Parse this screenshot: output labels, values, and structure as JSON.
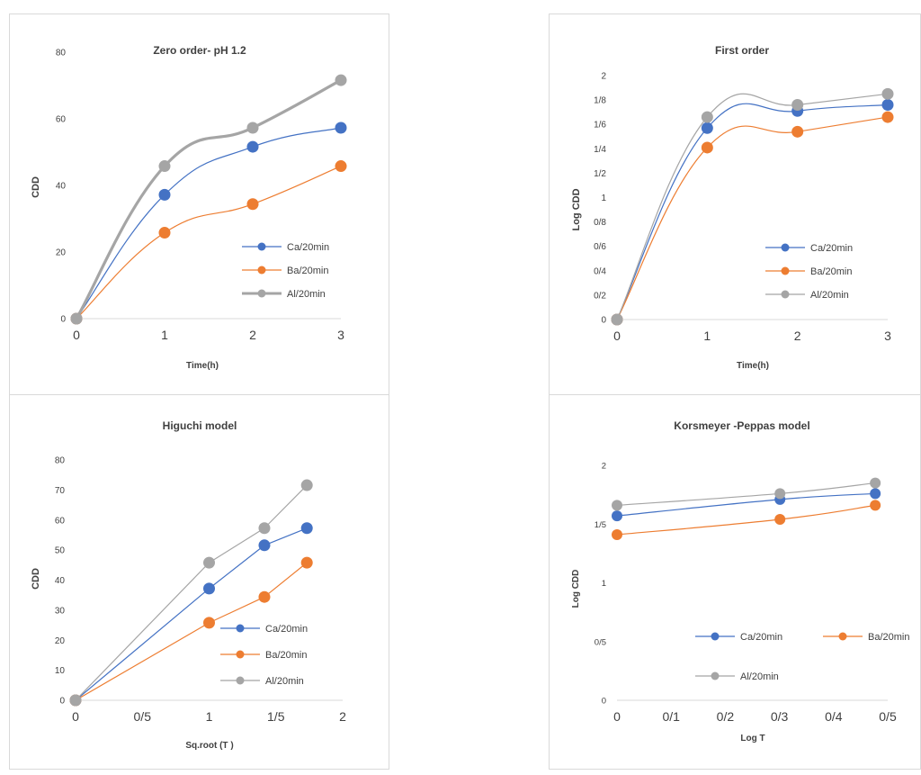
{
  "colors": {
    "ca": "#4472c4",
    "ba": "#ed7d31",
    "al": "#a5a5a5",
    "axis": "#d9d9d9",
    "text": "#404040"
  },
  "chart_data": [
    {
      "type": "line",
      "title": "Zero order- pH 1.2",
      "xlabel": "Time(h)",
      "ylabel": "CDD",
      "xlim": [
        0,
        3
      ],
      "ylim": [
        0,
        80
      ],
      "x_ticks": [
        "0",
        "1",
        "2",
        "3"
      ],
      "y_ticks": [
        "0",
        "20",
        "40",
        "60",
        "80"
      ],
      "grid": false,
      "legend": "right",
      "x": [
        0,
        1,
        2,
        3
      ],
      "series": [
        {
          "name": "Ca/20min",
          "values": [
            0,
            37.2,
            51.6,
            57.3
          ]
        },
        {
          "name": "Ba/20min",
          "values": [
            0,
            25.8,
            34.4,
            45.8
          ]
        },
        {
          "name": "Al/20min",
          "values": [
            0,
            45.8,
            57.3,
            71.6
          ]
        }
      ]
    },
    {
      "type": "line",
      "title": "First order",
      "xlabel": "Time(h)",
      "ylabel": "Log CDD",
      "xlim": [
        0,
        3
      ],
      "ylim": [
        0,
        2
      ],
      "x_ticks": [
        "0",
        "1",
        "2",
        "3"
      ],
      "y_ticks": [
        "0",
        "0/2",
        "0/4",
        "0/6",
        "0/8",
        "1",
        "1/2",
        "1/4",
        "1/6",
        "1/8",
        "2"
      ],
      "grid": false,
      "legend": "right",
      "x": [
        0,
        1,
        2,
        3
      ],
      "series": [
        {
          "name": "Ca/20min",
          "values": [
            0,
            1.57,
            1.71,
            1.76
          ]
        },
        {
          "name": "Ba/20min",
          "values": [
            0,
            1.41,
            1.54,
            1.66
          ]
        },
        {
          "name": "Al/20min",
          "values": [
            0,
            1.66,
            1.76,
            1.85
          ]
        }
      ]
    },
    {
      "type": "line",
      "title": "Higuchi model",
      "xlabel": "Sq.root (T )",
      "ylabel": "CDD",
      "xlim": [
        0,
        2
      ],
      "ylim": [
        0,
        80
      ],
      "x_ticks": [
        "0",
        "0/5",
        "1",
        "1/5",
        "2"
      ],
      "y_ticks": [
        "0",
        "10",
        "20",
        "30",
        "40",
        "50",
        "60",
        "70",
        "80"
      ],
      "grid": false,
      "legend": "bottom-right",
      "x": [
        0,
        1,
        1.414,
        1.732
      ],
      "series": [
        {
          "name": "Ca/20min",
          "values": [
            0,
            37.2,
            51.6,
            57.3
          ]
        },
        {
          "name": "Ba/20min",
          "values": [
            0,
            25.8,
            34.4,
            45.8
          ]
        },
        {
          "name": "Al/20min",
          "values": [
            0,
            45.8,
            57.3,
            71.6
          ]
        }
      ]
    },
    {
      "type": "line",
      "title": "Korsmeyer -Peppas model",
      "xlabel": "Log T",
      "ylabel": "Log CDD",
      "xlim": [
        0,
        0.5
      ],
      "ylim": [
        0,
        2
      ],
      "x_ticks": [
        "0",
        "0/1",
        "0/2",
        "0/3",
        "0/4",
        "0/5"
      ],
      "y_ticks": [
        "0",
        "0/5",
        "1",
        "1/5",
        "2"
      ],
      "grid": false,
      "legend": "bottom",
      "x": [
        0,
        0.301,
        0.477
      ],
      "series": [
        {
          "name": "Ca/20min",
          "values": [
            1.57,
            1.71,
            1.76
          ]
        },
        {
          "name": "Ba/20min",
          "values": [
            1.41,
            1.54,
            1.66
          ]
        },
        {
          "name": "Al/20min",
          "values": [
            1.66,
            1.76,
            1.85
          ]
        }
      ]
    }
  ]
}
